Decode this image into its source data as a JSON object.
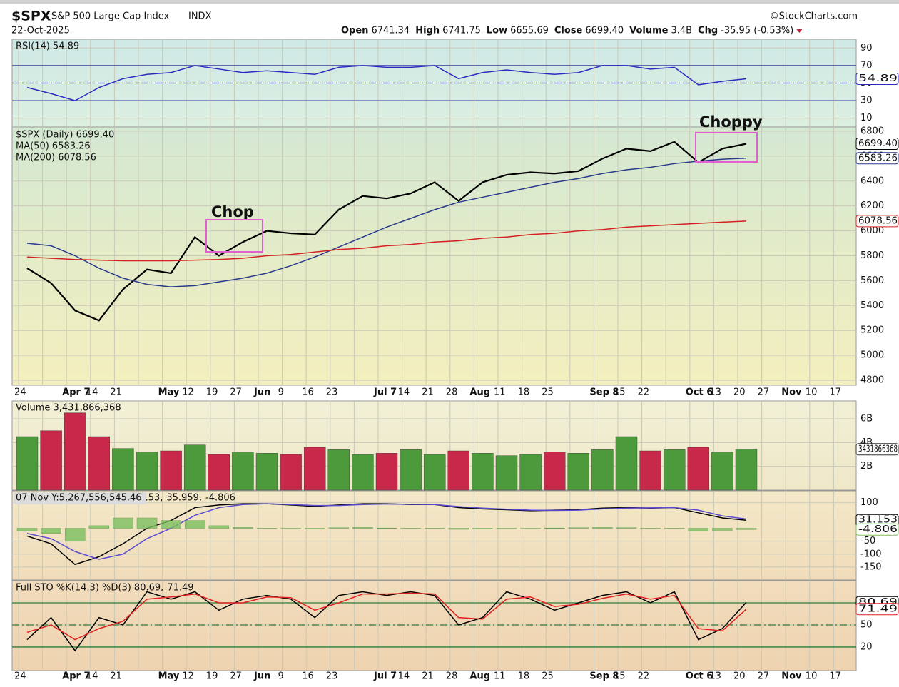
{
  "header": {
    "symbol": "$SPX",
    "name": "S&P 500 Large Cap Index",
    "exchange": "INDX",
    "date": "22-Oct-2025",
    "source": "©StockCharts.com",
    "quote": [
      {
        "label": "Open",
        "value": "6741.34"
      },
      {
        "label": "High",
        "value": "6741.75"
      },
      {
        "label": "Low",
        "value": "6655.69"
      },
      {
        "label": "Close",
        "value": "6699.40"
      },
      {
        "label": "Volume",
        "value": "3.4B"
      },
      {
        "label": "Chg",
        "value": "-35.95 (-0.53%)"
      }
    ]
  },
  "x_categories": [
    "24",
    null,
    "Apr 7",
    "14",
    "21",
    null,
    "May",
    "12",
    "19",
    "27",
    "Jun",
    "9",
    "16",
    "23",
    null,
    "Jul 7",
    "14",
    "21",
    "28",
    "Aug",
    "11",
    "18",
    "25",
    null,
    "Sep 8",
    "15",
    "22",
    null,
    "Oct 6",
    "13",
    "20",
    "27",
    "Nov",
    "10",
    "17"
  ],
  "chart_data": [
    {
      "type": "line",
      "legend": [
        "RSI(14) 54.89"
      ],
      "ylim": [
        0,
        100
      ],
      "yticks": [
        90,
        70,
        50,
        30,
        10
      ],
      "ref_lines": [
        {
          "value": 70,
          "style": "solid"
        },
        {
          "value": 50,
          "style": "dash"
        },
        {
          "value": 30,
          "style": "solid"
        }
      ],
      "ref_color": "#3a3aa8",
      "series": [
        {
          "name": "RSI(14)",
          "color": "#2b2bc0",
          "last_label": "54.89",
          "values": [
            45,
            38,
            30,
            45,
            55,
            60,
            62,
            70,
            66,
            62,
            64,
            62,
            60,
            68,
            70,
            68,
            68,
            70,
            55,
            62,
            65,
            62,
            60,
            62,
            70,
            70,
            66,
            68,
            48,
            52,
            54.89,
            null,
            null,
            null,
            null
          ]
        }
      ]
    },
    {
      "type": "line",
      "legend": [
        "$SPX (Daily) 6699.40",
        "MA(50) 6583.26",
        "MA(200) 6078.56"
      ],
      "ylim": [
        4760,
        6834
      ],
      "yticks": [
        4800,
        5000,
        5200,
        5400,
        5600,
        5800,
        6000,
        6200,
        6400,
        6600,
        6800
      ],
      "annotations": [
        "Chop",
        "Choppy"
      ],
      "series": [
        {
          "name": "$SPX",
          "color": "#000000",
          "last_label": "6699.40",
          "values": [
            5700,
            5580,
            5360,
            5280,
            5530,
            5690,
            5660,
            5950,
            5800,
            5910,
            6000,
            5980,
            5970,
            6170,
            6280,
            6260,
            6300,
            6390,
            6240,
            6390,
            6450,
            6470,
            6460,
            6480,
            6580,
            6660,
            6640,
            6715,
            6550,
            6660,
            6699.4,
            null,
            null,
            null,
            null
          ]
        },
        {
          "name": "MA(50)",
          "color": "#2a3a8c",
          "last_label": "6583.26",
          "values": [
            5900,
            5880,
            5800,
            5700,
            5620,
            5570,
            5550,
            5560,
            5590,
            5620,
            5660,
            5720,
            5790,
            5870,
            5950,
            6030,
            6100,
            6170,
            6230,
            6270,
            6310,
            6350,
            6390,
            6420,
            6460,
            6490,
            6510,
            6540,
            6560,
            6575,
            6583.26,
            null,
            null,
            null,
            null
          ]
        },
        {
          "name": "MA(200)",
          "color": "#d42020",
          "last_label": "6078.56",
          "values": [
            5790,
            5780,
            5770,
            5765,
            5760,
            5760,
            5760,
            5765,
            5770,
            5780,
            5800,
            5810,
            5830,
            5850,
            5860,
            5880,
            5890,
            5910,
            5920,
            5940,
            5950,
            5970,
            5980,
            6000,
            6010,
            6030,
            6040,
            6050,
            6060,
            6070,
            6078.56,
            null,
            null,
            null,
            null
          ]
        }
      ]
    },
    {
      "type": "bar",
      "legend": [
        "Volume 3,431,866,368"
      ],
      "ylim": [
        0,
        7500000000
      ],
      "yticks": [
        {
          "value": 6000000000,
          "label": "6B"
        },
        {
          "value": 4000000000,
          "label": "4B"
        },
        {
          "value": 2000000000,
          "label": "2B"
        }
      ],
      "up_color": "#4c9a3c",
      "down_color": "#c8284a",
      "series": [
        {
          "name": "Volume",
          "last_label": "3431866368",
          "values": [
            4500000000,
            5000000000,
            6500000000,
            4500000000,
            3500000000,
            3200000000,
            3300000000,
            3800000000,
            3000000000,
            3200000000,
            3100000000,
            3000000000,
            3600000000,
            3400000000,
            3000000000,
            3100000000,
            3400000000,
            3000000000,
            3300000000,
            3100000000,
            2900000000,
            3000000000,
            3200000000,
            3100000000,
            3400000000,
            4500000000,
            3300000000,
            3400000000,
            3600000000,
            3200000000,
            3431866368,
            null,
            null,
            null,
            null
          ]
        }
      ]
    },
    {
      "type": "line",
      "legend": [
        "07 Nov Y:5,267,556,545.46",
        ".53,",
        "35.959,",
        "-4.806"
      ],
      "ylim": [
        -200,
        145
      ],
      "yticks": [
        100,
        -50,
        -100,
        -150
      ],
      "series": [
        {
          "name": "MACD",
          "color": "#000000",
          "last_label": "31.153",
          "values": [
            -30,
            -60,
            -140,
            -110,
            -60,
            0,
            30,
            80,
            90,
            95,
            95,
            90,
            85,
            90,
            95,
            95,
            92,
            92,
            80,
            75,
            72,
            68,
            70,
            72,
            78,
            80,
            78,
            80,
            60,
            40,
            31.153,
            null,
            null,
            null,
            null
          ]
        },
        {
          "name": "Signal",
          "color": "#5a4ad0",
          "values": [
            -20,
            -40,
            -90,
            -120,
            -100,
            -40,
            0,
            50,
            80,
            92,
            95,
            92,
            88,
            88,
            92,
            94,
            93,
            92,
            84,
            78,
            74,
            70,
            69,
            70,
            75,
            78,
            79,
            80,
            70,
            48,
            35.959,
            null,
            null,
            null,
            null
          ]
        },
        {
          "name": "Histogram",
          "color": "#7cc060",
          "style": "bars",
          "last_label": "-4.806",
          "values": [
            -10,
            -20,
            -50,
            10,
            40,
            40,
            30,
            30,
            10,
            3,
            0,
            -2,
            -3,
            2,
            3,
            1,
            -1,
            0,
            -4,
            -3,
            -2,
            -2,
            1,
            2,
            3,
            2,
            -1,
            0,
            -10,
            -8,
            -4.806,
            null,
            null,
            null,
            null
          ]
        }
      ]
    },
    {
      "type": "line",
      "legend": [
        "Full STO %K(14,3) %D(3) 80.69,",
        "71.49"
      ],
      "ylim": [
        -12,
        110
      ],
      "yticks": [
        80,
        50,
        20
      ],
      "ref_lines": [
        {
          "value": 80,
          "style": "solid"
        },
        {
          "value": 50,
          "style": "dash"
        },
        {
          "value": 20,
          "style": "solid"
        }
      ],
      "ref_color": "#2f7a3a",
      "series": [
        {
          "name": "%K",
          "color": "#000000",
          "last_label": "80.69",
          "values": [
            30,
            60,
            15,
            60,
            50,
            95,
            85,
            95,
            70,
            85,
            90,
            85,
            60,
            90,
            95,
            90,
            95,
            90,
            50,
            60,
            95,
            85,
            70,
            80,
            90,
            95,
            80,
            95,
            30,
            45,
            80.69,
            null,
            null,
            null,
            null
          ]
        },
        {
          "name": "%D",
          "color": "#e02020",
          "last_label": "71.49",
          "values": [
            40,
            50,
            30,
            45,
            55,
            85,
            88,
            92,
            80,
            80,
            88,
            87,
            70,
            80,
            92,
            92,
            93,
            92,
            60,
            58,
            85,
            88,
            75,
            78,
            86,
            92,
            85,
            90,
            45,
            42,
            71.49,
            null,
            null,
            null,
            null
          ]
        }
      ]
    }
  ]
}
